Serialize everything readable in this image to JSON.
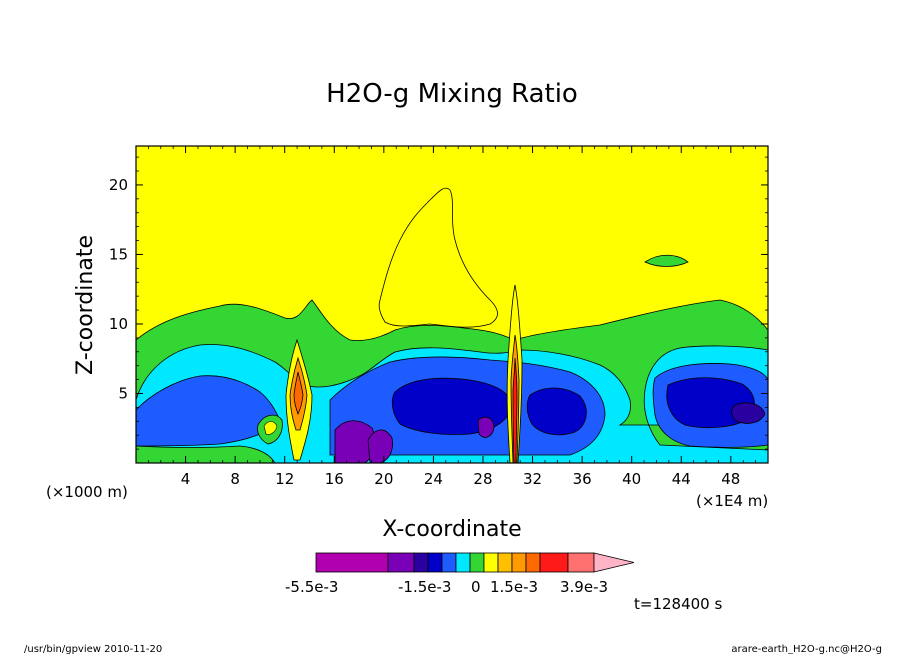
{
  "chart_data": {
    "type": "heatmap",
    "title": "H2O-g Mixing Ratio",
    "xlabel": "X-coordinate",
    "ylabel": "Z-coordinate",
    "x_unit_left": "(×1000 m)",
    "x_unit_right": "(×1E4 m)",
    "x_ticks": [
      4,
      8,
      12,
      16,
      20,
      24,
      28,
      32,
      36,
      40,
      44,
      48
    ],
    "y_ticks": [
      5,
      10,
      15,
      20
    ],
    "xlim": [
      0,
      51
    ],
    "ylim": [
      0,
      22.8
    ],
    "colorbar": {
      "colors": [
        "#b000b0",
        "#7a00b8",
        "#2a00a0",
        "#0000c8",
        "#1e5cff",
        "#00e8ff",
        "#33d633",
        "#ffff00",
        "#ffc000",
        "#ff9a00",
        "#ff6a00",
        "#ff1a1a",
        "#ff7070",
        "#ffb3c6"
      ],
      "labels": [
        "-5.5e-3",
        "-1.5e-3",
        "0",
        "1.5e-3",
        "3.9e-3"
      ]
    },
    "time_label": "t=128400 s"
  },
  "footer": {
    "left": "/usr/bin/gpview   2010-11-20",
    "right": "arare-earth_H2O-g.nc@H2O-g"
  }
}
